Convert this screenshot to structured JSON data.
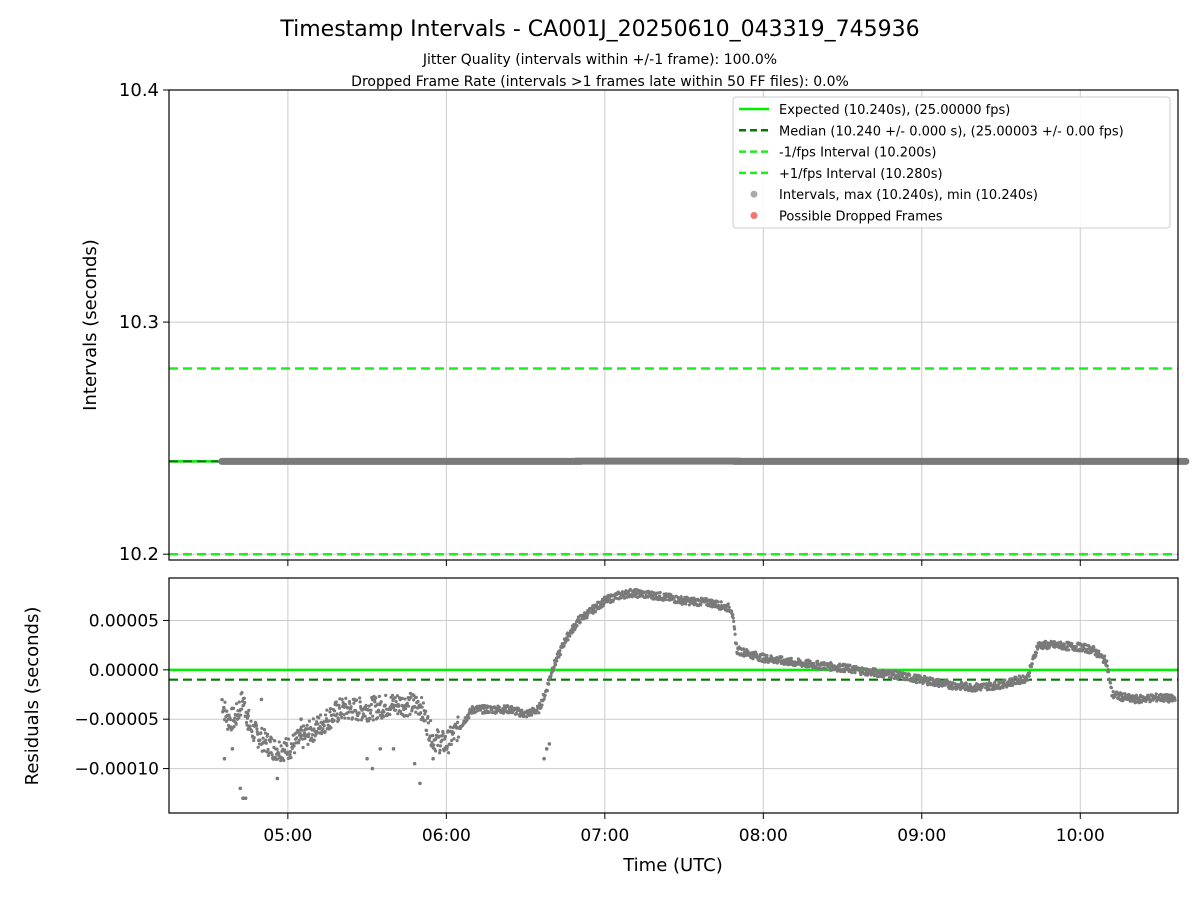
{
  "figure": {
    "title": "Timestamp Intervals - CA001J_20250610_043319_745936",
    "subtitle_1": "Jitter Quality (intervals within +/-1 frame): 100.0%",
    "subtitle_2": "Dropped Frame Rate (intervals >1 frames late within 50 FF files): 0.0%",
    "xlabel": "Time (UTC)"
  },
  "colors": {
    "expected": "#00ee00",
    "median": "#007a00",
    "bound": "#1eee1e",
    "points": "#7a7a7a",
    "dropped": "#f06464",
    "grid": "#cccccc"
  },
  "chart_data": [
    {
      "type": "line",
      "name": "intervals",
      "ylabel": "Intervals (seconds)",
      "ylim": [
        10.1975,
        10.4
      ],
      "yticks": [
        10.2,
        10.3,
        10.4
      ],
      "ytick_labels": [
        "10.2",
        "10.3",
        "10.4"
      ],
      "grid": true,
      "legend_position": "top-right",
      "legend": [
        {
          "label": "Expected (10.240s), (25.00000 fps)",
          "style": "solid",
          "color": "#00ee00"
        },
        {
          "label": "Median (10.240 +/- 0.000 s), (25.00003 +/- 0.00 fps)",
          "style": "dashed",
          "color": "#007a00"
        },
        {
          "label": "-1/fps Interval (10.200s)",
          "style": "dashed",
          "color": "#1eee1e"
        },
        {
          "label": "+1/fps Interval (10.280s)",
          "style": "dashed",
          "color": "#1eee1e"
        },
        {
          "label": "Intervals, max (10.240s), min (10.240s)",
          "style": "marker",
          "color": "#aaaaaa"
        },
        {
          "label": "Possible Dropped Frames",
          "style": "marker",
          "color": "#f06464"
        }
      ],
      "hlines": {
        "expected": 10.24,
        "median": 10.24,
        "minus_1fps": 10.2,
        "plus_1fps": 10.28
      },
      "intervals_series": {
        "name": "Intervals",
        "x": [
          "04:35",
          "06:50",
          "06:50",
          "07:50",
          "07:50",
          "10:40"
        ],
        "y": [
          10.24,
          10.24,
          10.2401,
          10.2401,
          10.24,
          10.24
        ]
      },
      "dropped_frames": []
    },
    {
      "type": "scatter",
      "name": "residuals",
      "ylabel": "Residuals (seconds)",
      "ylim": [
        -0.000145,
        9.3e-05
      ],
      "yticks": [
        5e-05,
        0.0,
        -5e-05,
        -0.0001
      ],
      "ytick_labels": [
        "0.00005",
        "0.00000",
        "−0.00005",
        "−0.00010"
      ],
      "xlim": [
        "04:15",
        "10:37"
      ],
      "xticks": [
        "05:00",
        "06:00",
        "07:00",
        "08:00",
        "09:00",
        "10:00"
      ],
      "xtick_labels": [
        "05:00",
        "06:00",
        "07:00",
        "08:00",
        "09:00",
        "10:00"
      ],
      "grid": true,
      "hlines": {
        "expected": 0.0,
        "median": -1e-05
      },
      "residual_trend": {
        "x": [
          "04:35",
          "04:37",
          "04:40",
          "04:43",
          "04:46",
          "04:50",
          "04:55",
          "05:00",
          "05:10",
          "05:20",
          "05:30",
          "05:40",
          "05:50",
          "05:55",
          "06:00",
          "06:10",
          "06:20",
          "06:24",
          "06:30",
          "06:35",
          "06:38",
          "06:40",
          "06:45",
          "06:50",
          "06:55",
          "07:00",
          "07:05",
          "07:10",
          "07:20",
          "07:30",
          "07:40",
          "07:48",
          "07:50",
          "08:00",
          "08:10",
          "08:20",
          "08:30",
          "08:40",
          "08:50",
          "09:00",
          "09:10",
          "09:20",
          "09:30",
          "09:40",
          "09:44",
          "09:50",
          "10:00",
          "10:05",
          "10:10",
          "10:12",
          "10:20",
          "10:30",
          "10:36"
        ],
        "y": [
          -3e-05,
          -5e-05,
          -5e-05,
          -3e-05,
          -6e-05,
          -7e-05,
          -8e-05,
          -8e-05,
          -6e-05,
          -4e-05,
          -4e-05,
          -3.5e-05,
          -3.5e-05,
          -7e-05,
          -7.5e-05,
          -4e-05,
          -4e-05,
          -4e-05,
          -4.5e-05,
          -4e-05,
          -2e-05,
          0.0,
          3e-05,
          5e-05,
          6e-05,
          7e-05,
          7.5e-05,
          7.8e-05,
          7.5e-05,
          7e-05,
          6.8e-05,
          6.2e-05,
          2e-05,
          1.2e-05,
          8e-06,
          5e-06,
          2e-06,
          -2e-06,
          -5e-06,
          -1e-05,
          -1.5e-05,
          -1.8e-05,
          -1.5e-05,
          -8e-06,
          2.5e-05,
          2.5e-05,
          2.3e-05,
          2e-05,
          8e-06,
          -2.5e-05,
          -3e-05,
          -2.8e-05,
          -3e-05
        ]
      },
      "outliers": {
        "x": [
          "04:36",
          "04:39",
          "04:42",
          "04:43",
          "04:44",
          "04:45",
          "04:50",
          "04:56",
          "04:58",
          "05:05",
          "05:30",
          "05:32",
          "05:35",
          "05:40",
          "05:48",
          "05:50",
          "05:55",
          "06:37",
          "06:38",
          "06:39"
        ],
        "y": [
          -9e-05,
          -8e-05,
          -0.00012,
          -0.00013,
          -0.00013,
          -6e-05,
          -3e-05,
          -0.00011,
          -9e-05,
          -5e-05,
          -9e-05,
          -0.0001,
          -8e-05,
          -8e-05,
          -9.5e-05,
          -0.000115,
          -9e-05,
          -9e-05,
          -8e-05,
          -7.5e-05
        ]
      }
    }
  ]
}
